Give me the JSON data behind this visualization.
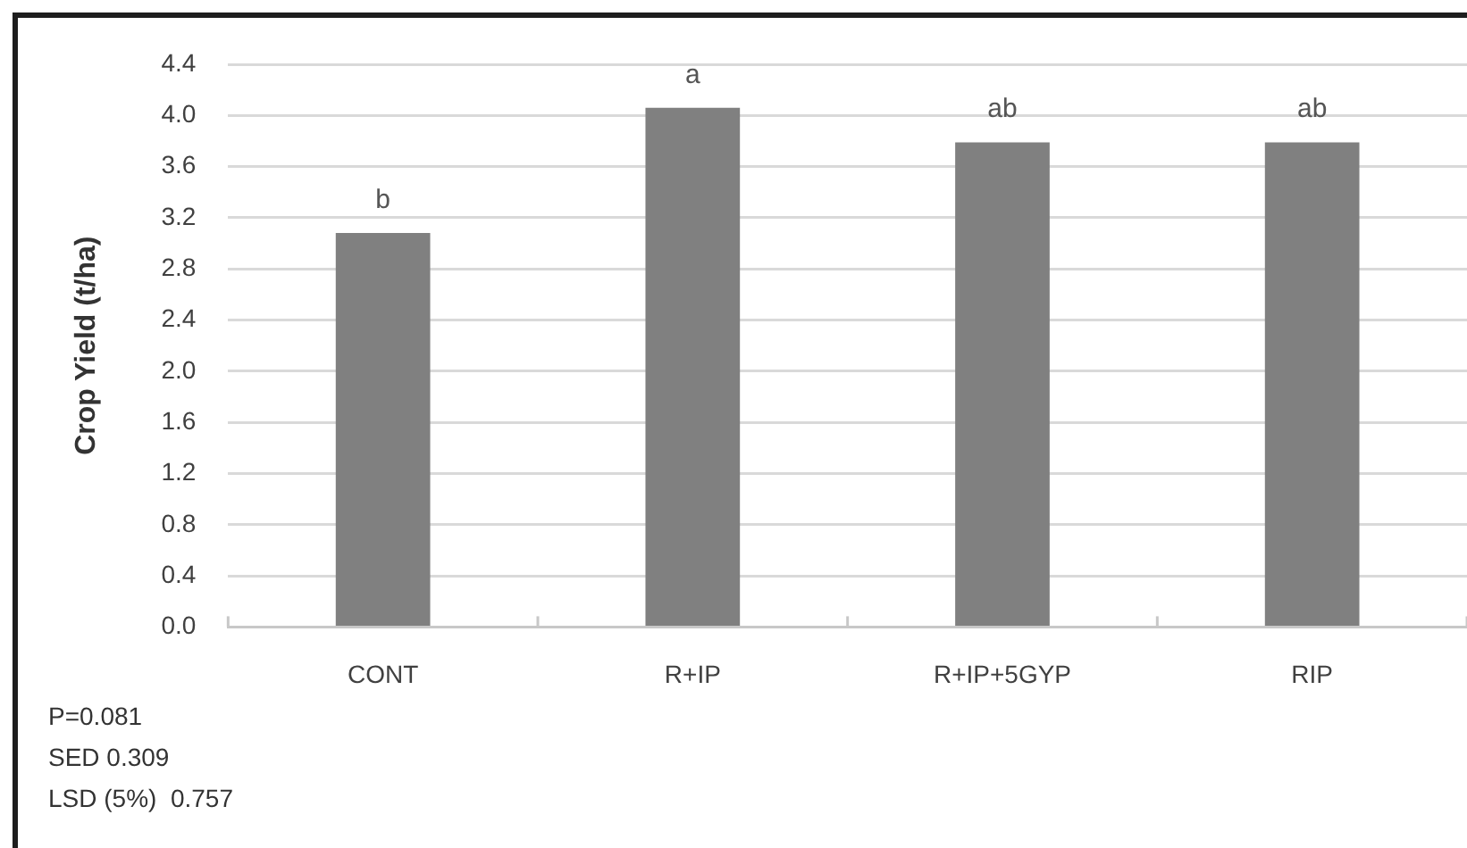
{
  "chart_data": {
    "type": "bar",
    "ylabel": "Crop Yield (t/ha)",
    "categories": [
      "CONT",
      "R+IP",
      "R+IP+5GYP",
      "RIP"
    ],
    "values": [
      3.08,
      4.06,
      3.79,
      3.79
    ],
    "color": "#808080",
    "ylim": [
      0,
      4.4
    ],
    "yticks": [
      {
        "value": 0,
        "label": "0.0"
      },
      0.4,
      0.8,
      1.2,
      1.6,
      {
        "value": 2,
        "label": "2.0"
      },
      2.4,
      2.8,
      3.2,
      3.6,
      {
        "value": 4,
        "label": "4.0"
      },
      4.4
    ],
    "grid": "y",
    "annotations": [
      {
        "text": "b",
        "x": "CONT",
        "y": 3.08
      },
      {
        "text": "a",
        "x": "R+IP",
        "y": 4.06
      },
      {
        "text": "ab",
        "x": "R+IP+5GYP",
        "y": 3.79
      },
      {
        "text": "ab",
        "x": "RIP",
        "y": 3.79
      },
      "P=0.081",
      "SED 0.309",
      "LSD (5%)  0.757"
    ]
  }
}
